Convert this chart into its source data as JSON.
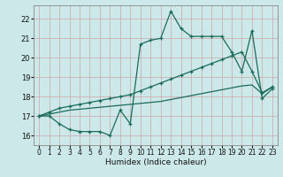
{
  "bg_color": "#cce8e8",
  "line_color": "#1a6b5a",
  "xlabel": "Humidex (Indice chaleur)",
  "xlim": [
    -0.5,
    23.5
  ],
  "ylim": [
    15.5,
    22.7
  ],
  "yticks": [
    16,
    17,
    18,
    19,
    20,
    21,
    22
  ],
  "xticks": [
    0,
    1,
    2,
    3,
    4,
    5,
    6,
    7,
    8,
    9,
    10,
    11,
    12,
    13,
    14,
    15,
    16,
    17,
    18,
    19,
    20,
    21,
    22,
    23
  ],
  "line1_x": [
    0,
    1,
    2,
    3,
    4,
    5,
    6,
    7,
    8,
    9,
    10,
    11,
    12,
    13,
    14,
    15,
    16,
    17,
    18,
    19,
    20,
    21,
    22,
    23
  ],
  "line1_y": [
    17.0,
    17.0,
    16.6,
    16.3,
    16.2,
    16.2,
    16.2,
    16.0,
    17.3,
    16.6,
    20.7,
    20.9,
    21.0,
    22.4,
    21.5,
    21.1,
    21.1,
    21.1,
    21.1,
    20.3,
    19.3,
    21.4,
    17.9,
    18.4
  ],
  "line2_x": [
    0,
    1,
    2,
    3,
    4,
    5,
    6,
    7,
    8,
    9,
    10,
    11,
    12,
    13,
    14,
    15,
    16,
    17,
    18,
    19,
    20,
    21,
    22,
    23
  ],
  "line2_y": [
    17.0,
    17.2,
    17.4,
    17.5,
    17.6,
    17.7,
    17.8,
    17.9,
    18.0,
    18.1,
    18.3,
    18.5,
    18.7,
    18.9,
    19.1,
    19.3,
    19.5,
    19.7,
    19.9,
    20.1,
    20.3,
    19.3,
    18.2,
    18.5
  ],
  "line3_x": [
    0,
    1,
    2,
    3,
    4,
    5,
    6,
    7,
    8,
    9,
    10,
    11,
    12,
    13,
    14,
    15,
    16,
    17,
    18,
    19,
    20,
    21,
    22,
    23
  ],
  "line3_y": [
    17.0,
    17.1,
    17.2,
    17.3,
    17.35,
    17.4,
    17.45,
    17.5,
    17.55,
    17.6,
    17.65,
    17.7,
    17.75,
    17.85,
    17.95,
    18.05,
    18.15,
    18.25,
    18.35,
    18.45,
    18.55,
    18.6,
    18.15,
    18.5
  ]
}
